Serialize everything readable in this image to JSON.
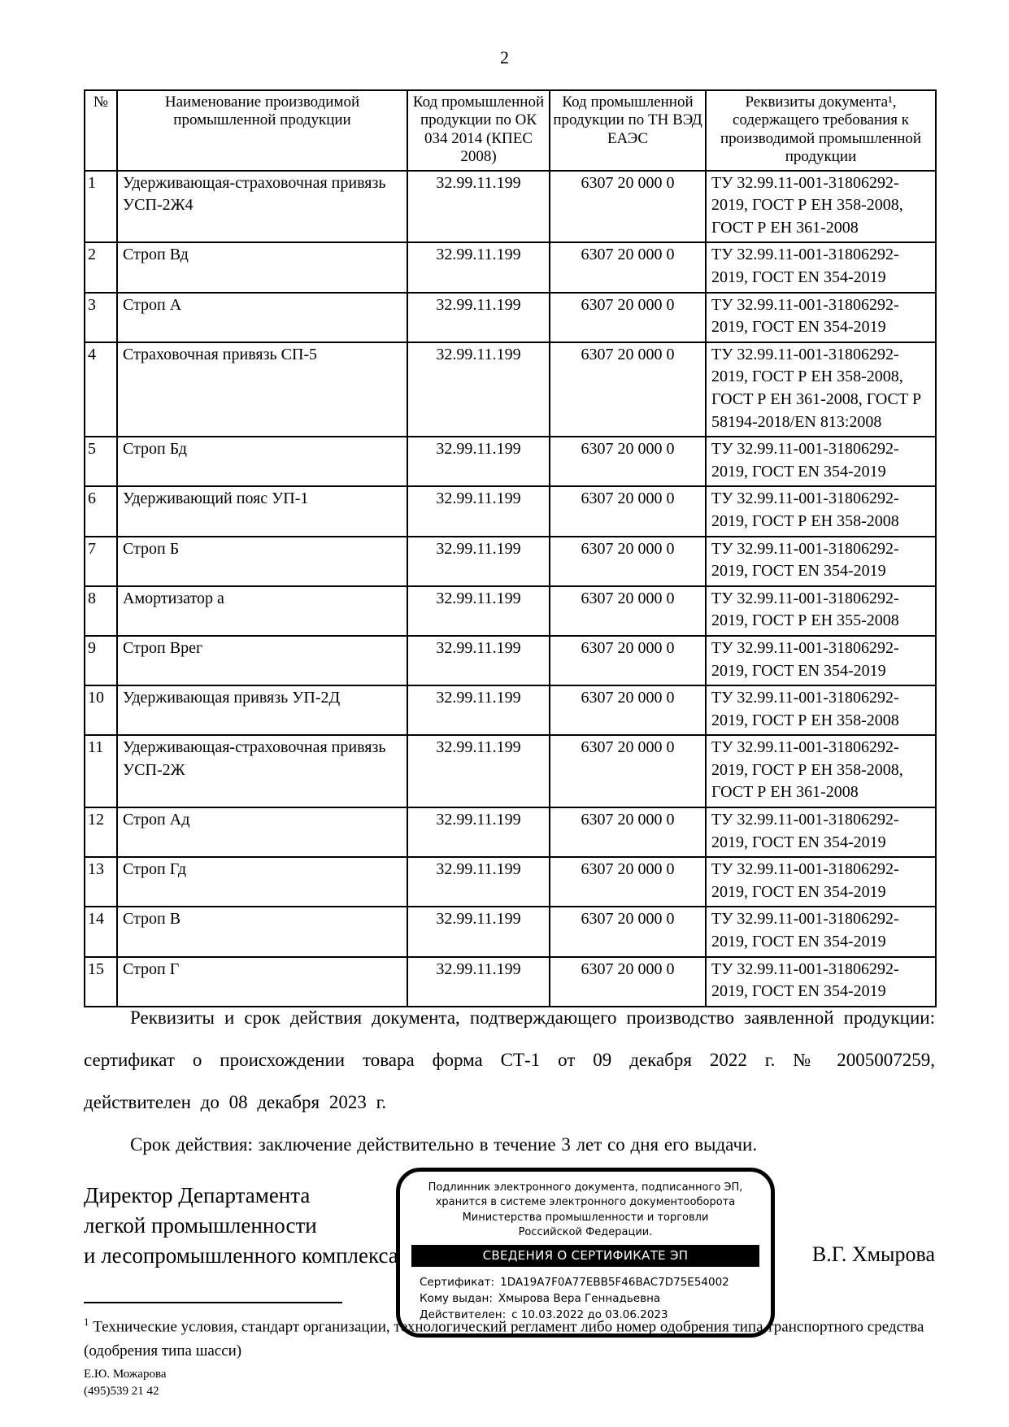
{
  "page_number": "2",
  "table": {
    "headers": [
      "№",
      "Наименование производимой промышленной продукции",
      "Код промышленной продукции по ОК 034 2014 (КПЕС 2008)",
      "Код промышленной продукции по ТН ВЭД ЕАЭС",
      "Реквизиты документа¹, содержащего требования к производимой промышленной продукции"
    ],
    "rows": [
      {
        "num": "1",
        "name": "Удерживающая-страховочная привязь УСП-2Ж4",
        "okp": "32.99.11.199",
        "tnved": "6307 20 000 0",
        "req": "ТУ 32.99.11-001-31806292-2019, ГОСТ Р ЕН 358-2008, ГОСТ Р ЕН 361-2008"
      },
      {
        "num": "2",
        "name": "Строп Вд",
        "okp": "32.99.11.199",
        "tnved": "6307 20 000 0",
        "req": "ТУ 32.99.11-001-31806292-2019, ГОСТ EN 354-2019"
      },
      {
        "num": "3",
        "name": "Строп А",
        "okp": "32.99.11.199",
        "tnved": "6307 20 000 0",
        "req": "ТУ 32.99.11-001-31806292-2019, ГОСТ EN 354-2019"
      },
      {
        "num": "4",
        "name": "Страховочная привязь СП-5",
        "okp": "32.99.11.199",
        "tnved": "6307 20 000 0",
        "req": "ТУ 32.99.11-001-31806292-2019, ГОСТ Р ЕН 358-2008, ГОСТ Р ЕН 361-2008, ГОСТ Р 58194-2018/EN 813:2008"
      },
      {
        "num": "5",
        "name": "Строп Бд",
        "okp": "32.99.11.199",
        "tnved": "6307 20 000 0",
        "req": "ТУ 32.99.11-001-31806292-2019, ГОСТ EN 354-2019"
      },
      {
        "num": "6",
        "name": "Удерживающий пояс УП-1",
        "okp": "32.99.11.199",
        "tnved": "6307 20 000 0",
        "req": "ТУ 32.99.11-001-31806292-2019, ГОСТ Р ЕН 358-2008"
      },
      {
        "num": "7",
        "name": "Строп Б",
        "okp": "32.99.11.199",
        "tnved": "6307 20 000 0",
        "req": "ТУ 32.99.11-001-31806292-2019, ГОСТ EN 354-2019"
      },
      {
        "num": "8",
        "name": "Амортизатор а",
        "okp": "32.99.11.199",
        "tnved": "6307 20 000 0",
        "req": "ТУ 32.99.11-001-31806292-2019, ГОСТ Р ЕН 355-2008"
      },
      {
        "num": "9",
        "name": "Строп Врег",
        "okp": "32.99.11.199",
        "tnved": "6307 20 000 0",
        "req": "ТУ 32.99.11-001-31806292-2019, ГОСТ EN 354-2019"
      },
      {
        "num": "10",
        "name": "Удерживающая привязь УП-2Д",
        "okp": "32.99.11.199",
        "tnved": "6307 20 000 0",
        "req": "ТУ 32.99.11-001-31806292-2019, ГОСТ Р ЕН 358-2008"
      },
      {
        "num": "11",
        "name": "Удерживающая-страховочная привязь УСП-2Ж",
        "okp": "32.99.11.199",
        "tnved": "6307 20 000 0",
        "req": "ТУ 32.99.11-001-31806292-2019, ГОСТ Р ЕН 358-2008, ГОСТ Р ЕН 361-2008"
      },
      {
        "num": "12",
        "name": "Строп Ад",
        "okp": "32.99.11.199",
        "tnved": "6307 20 000 0",
        "req": "ТУ 32.99.11-001-31806292-2019, ГОСТ EN 354-2019"
      },
      {
        "num": "13",
        "name": "Строп Гд",
        "okp": "32.99.11.199",
        "tnved": "6307 20 000 0",
        "req": "ТУ 32.99.11-001-31806292-2019, ГОСТ EN 354-2019"
      },
      {
        "num": "14",
        "name": "Строп В",
        "okp": "32.99.11.199",
        "tnved": "6307 20 000 0",
        "req": "ТУ 32.99.11-001-31806292-2019, ГОСТ EN 354-2019"
      },
      {
        "num": "15",
        "name": "Строп Г",
        "okp": "32.99.11.199",
        "tnved": "6307 20 000 0",
        "req": "ТУ 32.99.11-001-31806292-2019, ГОСТ EN 354-2019"
      }
    ]
  },
  "paragraphs": {
    "requisites": "Реквизиты и срок действия документа, подтверждающего производство заявленной продукции: сертификат о происхождении товара форма СТ-1 от 09 декабря 2022 г. № 2005007259, действителен до 08 декабря 2023 г.",
    "validity": "Срок действия: заключение действительно в течение 3 лет со дня его выдачи."
  },
  "signature": {
    "position_lines": [
      "Директор Департамента",
      "легкой промышленности",
      "и лесопромышленного комплекса"
    ],
    "name": "В.Г. Хмырова"
  },
  "stamp": {
    "header_lines": [
      "Подлинник электронного документа, подписанного ЭП,",
      "хранится в системе электронного документооборота",
      "Министерства промышленности и торговли",
      "Российской Федерации."
    ],
    "banner": "СВЕДЕНИЯ О СЕРТИФИКАТЕ ЭП",
    "fields": [
      {
        "label": "Сертификат:",
        "value": "1DA19A7F0A77EBB5F46BAC7D75E54002"
      },
      {
        "label": "Кому выдан:",
        "value": "Хмырова Вера Геннадьевна"
      },
      {
        "label": "Действителен:",
        "value": "с 10.03.2022 до 03.06.2023"
      }
    ]
  },
  "footnote": {
    "marker": "1",
    "text": "Технические условия, стандарт организации, технологический регламент либо номер одобрения типа транспортного средства (одобрения типа шасси)"
  },
  "contact": {
    "name": "Е.Ю. Можарова",
    "phone": "(495)539 21 42"
  }
}
